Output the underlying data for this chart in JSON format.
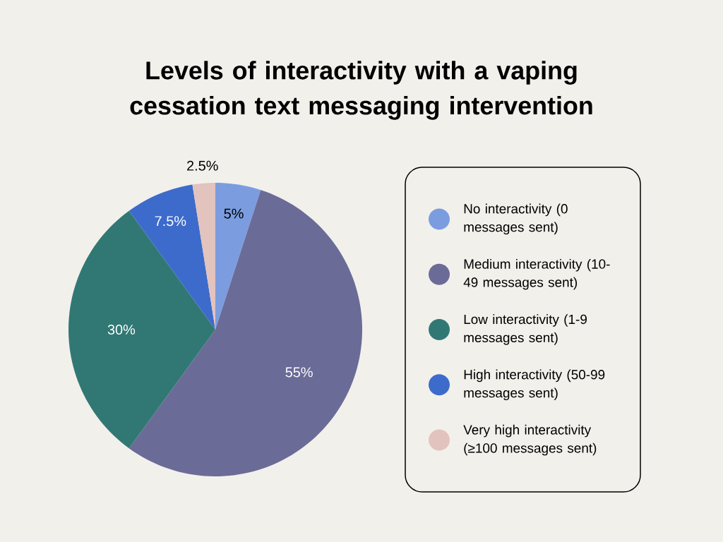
{
  "chart_data": {
    "type": "pie",
    "title": "Levels of interactivity with a vaping cessation text messaging intervention",
    "categories": [
      "No interactivity (0 messages sent)",
      "Medium interactivity (10-49 messages sent)",
      "Low interactivity (1-9 messages sent)",
      "High interactivity (50-99 messages sent)",
      "Very high interactivity (≥100 messages sent)"
    ],
    "values": [
      5,
      55,
      30,
      7.5,
      2.5
    ],
    "colors": [
      "#7b9de0",
      "#6b6b98",
      "#317874",
      "#3d6bcc",
      "#e3c3bd"
    ],
    "value_labels": [
      "5%",
      "55%",
      "30%",
      "7.5%",
      "2.5%"
    ],
    "legend": "right"
  }
}
